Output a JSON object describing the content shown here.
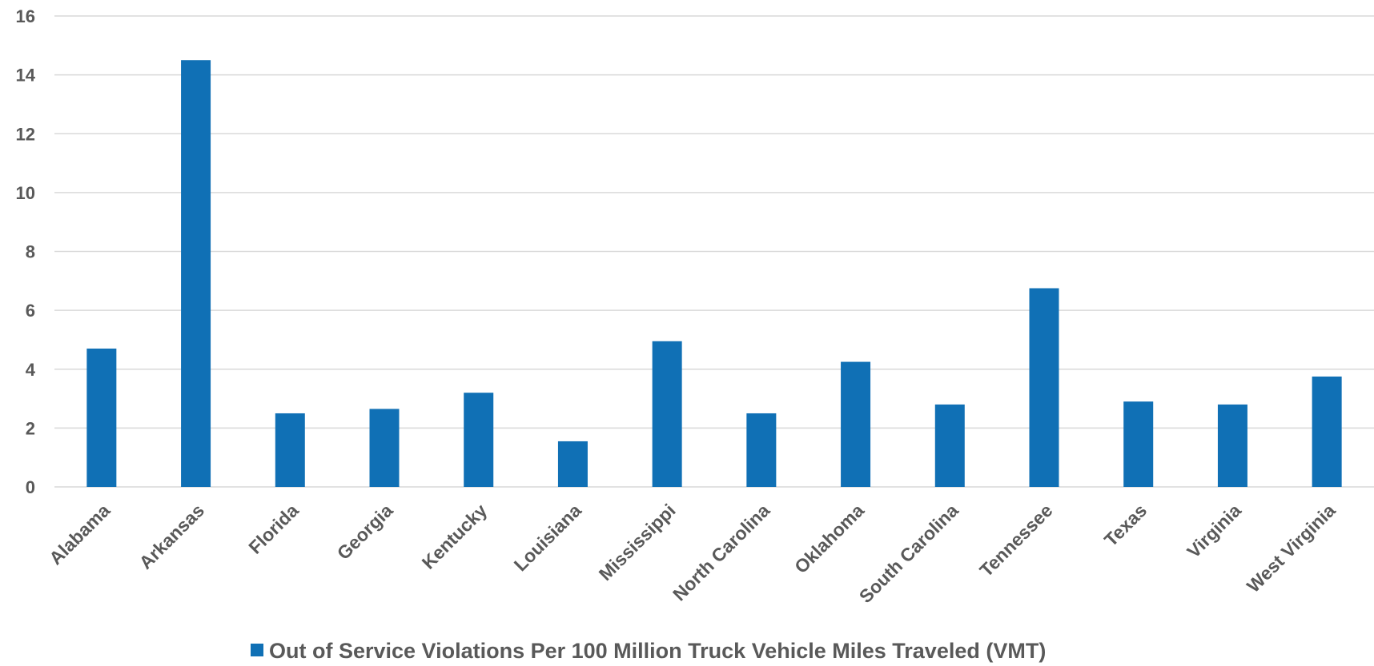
{
  "chart_data": {
    "type": "bar",
    "categories": [
      "Alabama",
      "Arkansas",
      "Florida",
      "Georgia",
      "Kentucky",
      "Louisiana",
      "Mississippi",
      "North Carolina",
      "Oklahoma",
      "South Carolina",
      "Tennessee",
      "Texas",
      "Virginia",
      "West Virginia"
    ],
    "series": [
      {
        "name": "Out of Service Violations Per 100 Million Truck Vehicle Miles Traveled (VMT)",
        "values": [
          4.7,
          14.5,
          2.5,
          2.65,
          3.2,
          1.55,
          4.95,
          2.5,
          4.25,
          2.8,
          6.75,
          2.9,
          2.8,
          3.75
        ]
      }
    ],
    "yticks": [
      "0",
      "2",
      "4",
      "6",
      "8",
      "10",
      "12",
      "14",
      "16"
    ],
    "ylim": [
      0,
      16
    ],
    "grid": true,
    "legend_position": "bottom",
    "bar_color": "#1070b5",
    "grid_color": "#d9d9d9",
    "text_color": "#595959"
  }
}
